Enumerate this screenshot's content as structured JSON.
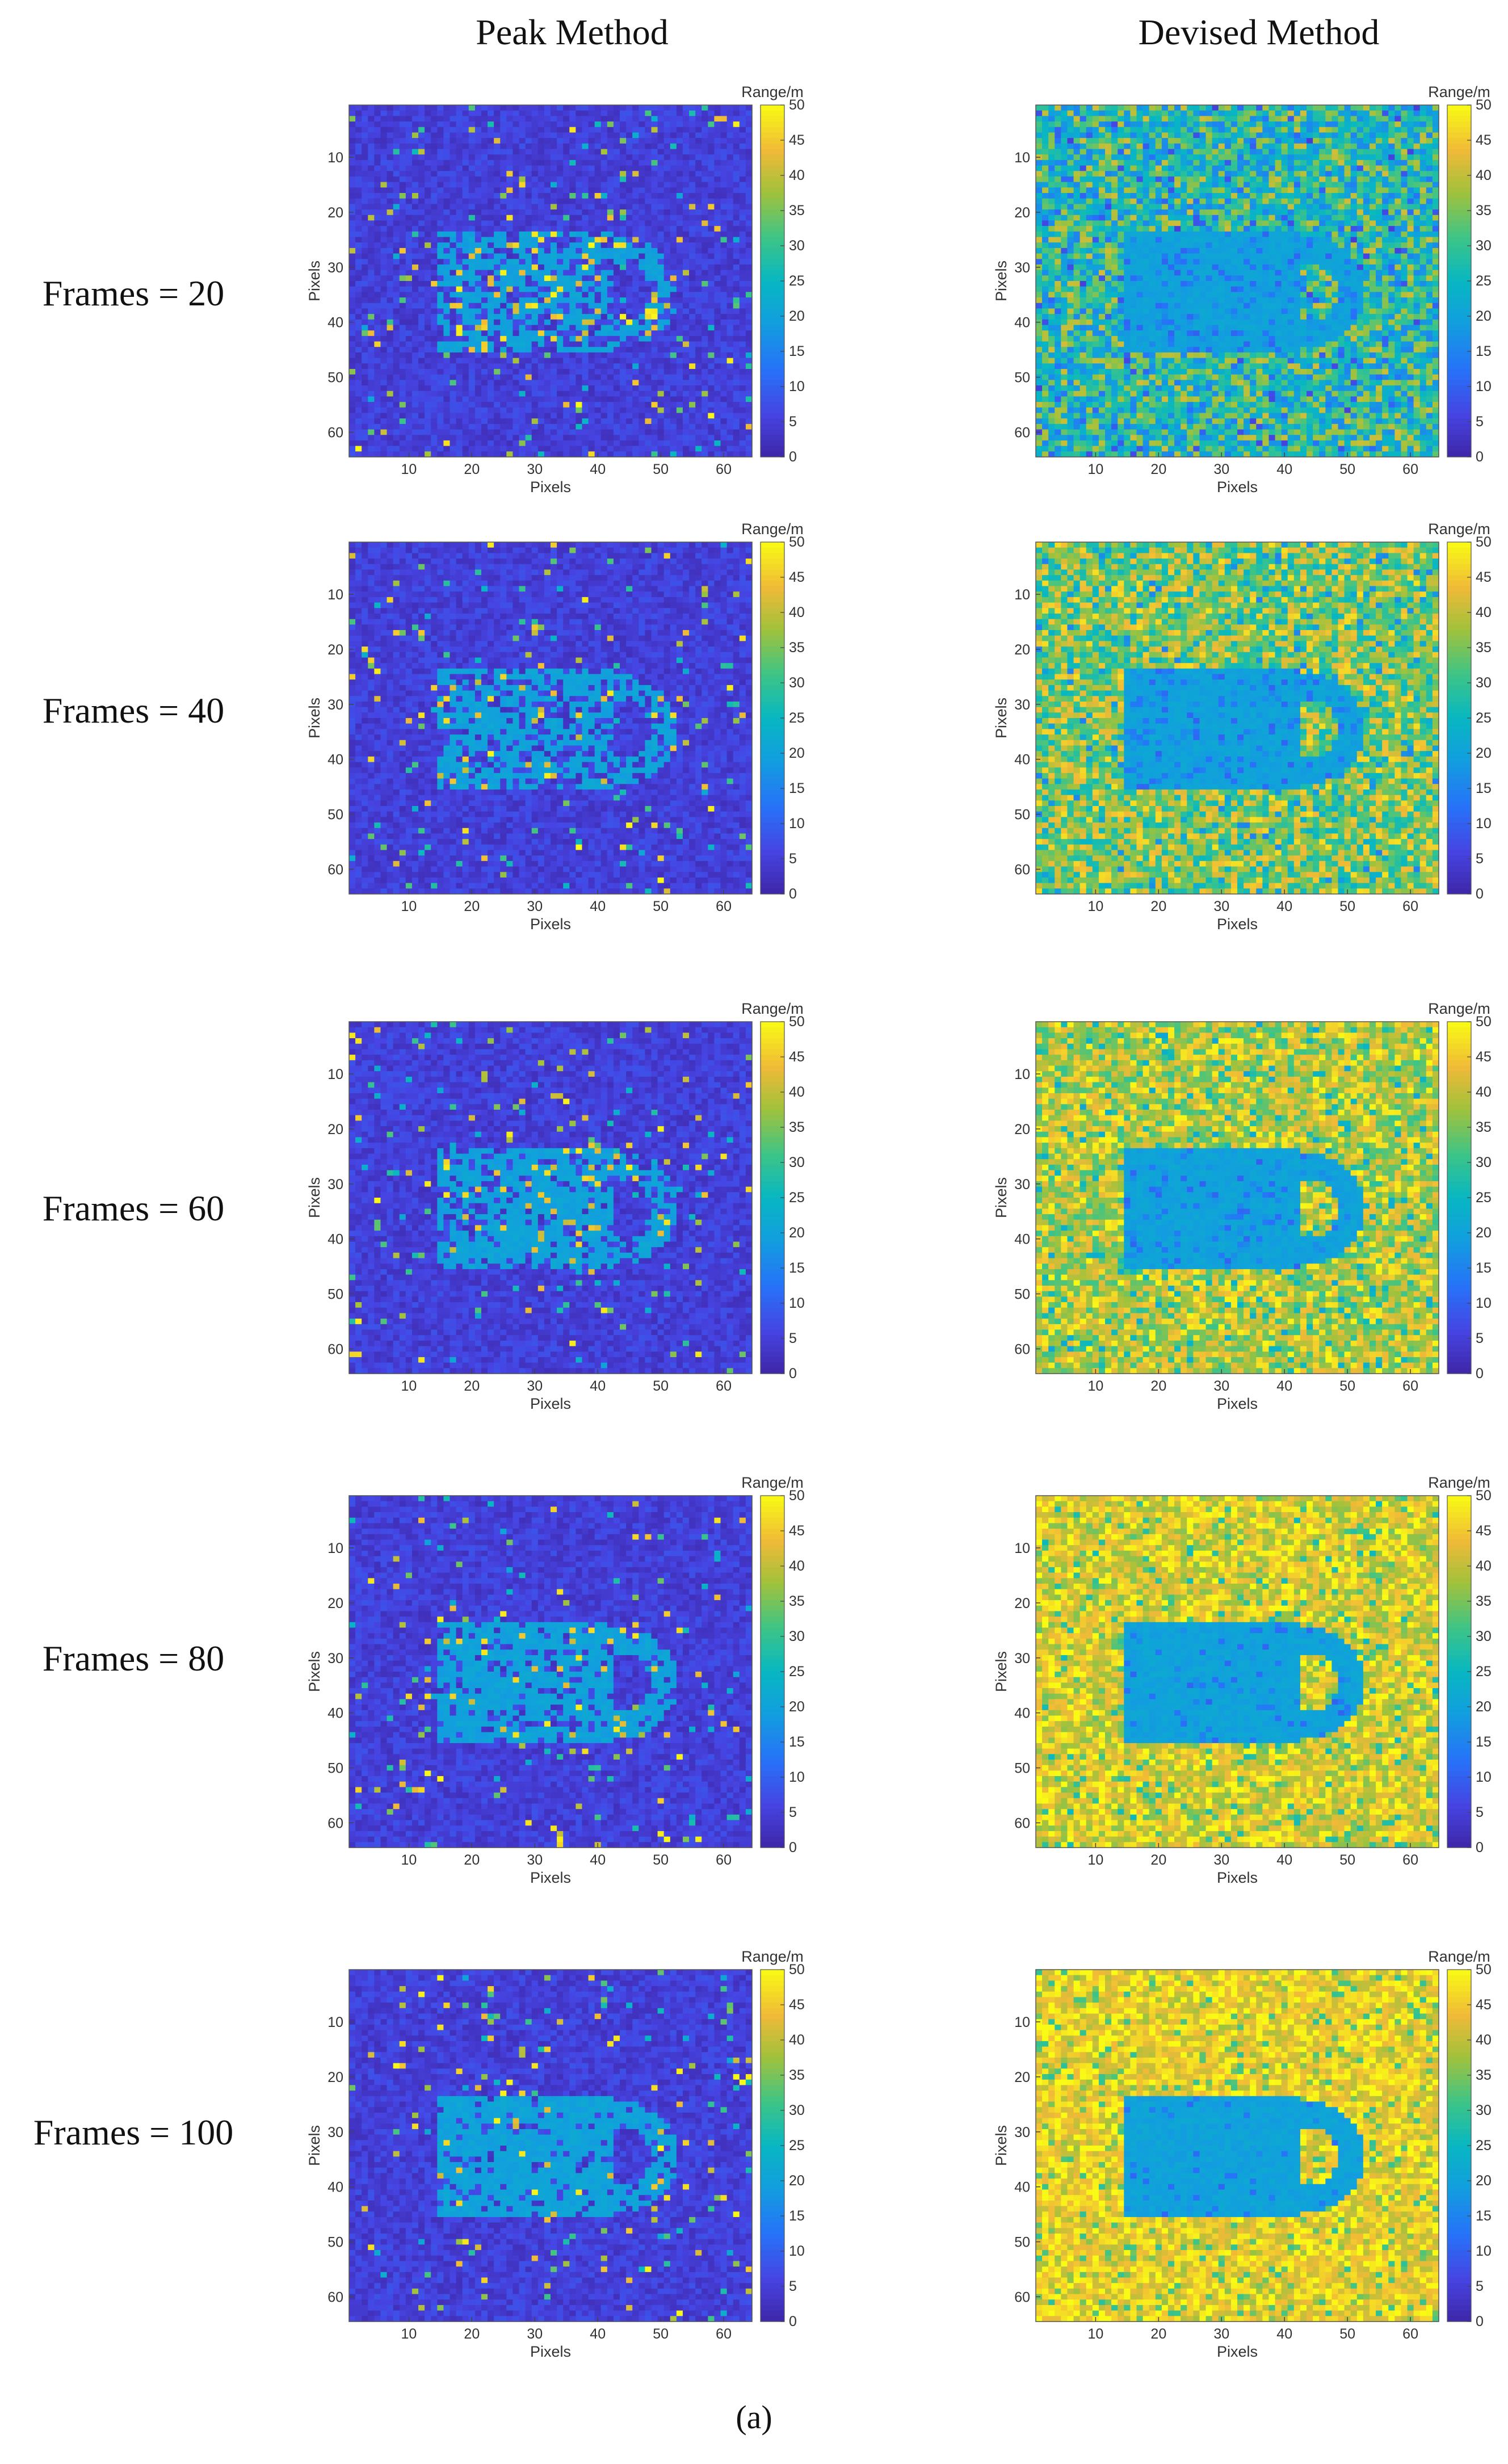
{
  "column_titles": [
    "Peak Method",
    "Devised Method"
  ],
  "row_labels": [
    "Frames = 20",
    "Frames = 40",
    "Frames = 60",
    "Frames = 80",
    "Frames = 100"
  ],
  "caption": "(a)",
  "colors": {
    "colormap": "parula",
    "background_low": "#3e3fb3",
    "target_range": "#1aa5d8",
    "noise_high": "#f5e12b"
  },
  "chart_data": [
    {
      "type": "heatmap",
      "method": "Peak Method",
      "frames": 20,
      "xlabel": "Pixels",
      "ylabel": "Pixels",
      "colorbar_label": "Range/m",
      "xlim": [
        1,
        64
      ],
      "ylim": [
        1,
        64
      ],
      "x_ticks": [
        10,
        20,
        30,
        40,
        50,
        60
      ],
      "y_ticks": [
        10,
        20,
        30,
        40,
        50,
        60
      ],
      "clim": [
        0,
        50
      ],
      "colorbar_ticks": [
        0,
        5,
        10,
        15,
        20,
        25,
        30,
        35,
        40,
        45,
        50
      ],
      "target_region": {
        "x": [
          15,
          52
        ],
        "y": [
          24,
          45
        ]
      },
      "target_range_m": 20,
      "background_range_m": 5
    },
    {
      "type": "heatmap",
      "method": "Devised Method",
      "frames": 20,
      "xlabel": "Pixels",
      "ylabel": "Pixels",
      "colorbar_label": "Range/m",
      "xlim": [
        1,
        64
      ],
      "ylim": [
        1,
        64
      ],
      "x_ticks": [
        10,
        20,
        30,
        40,
        50,
        60
      ],
      "y_ticks": [
        10,
        20,
        30,
        40,
        50,
        60
      ],
      "clim": [
        0,
        50
      ],
      "colorbar_ticks": [
        0,
        5,
        10,
        15,
        20,
        25,
        30,
        35,
        40,
        45,
        50
      ],
      "target_region": {
        "x": [
          15,
          52
        ],
        "y": [
          24,
          45
        ]
      },
      "target_range_m": 20,
      "background_range_m": 28
    },
    {
      "type": "heatmap",
      "method": "Peak Method",
      "frames": 40,
      "xlabel": "Pixels",
      "ylabel": "Pixels",
      "colorbar_label": "Range/m",
      "xlim": [
        1,
        64
      ],
      "ylim": [
        1,
        64
      ],
      "x_ticks": [
        10,
        20,
        30,
        40,
        50,
        60
      ],
      "y_ticks": [
        10,
        20,
        30,
        40,
        50,
        60
      ],
      "clim": [
        0,
        50
      ],
      "colorbar_ticks": [
        0,
        5,
        10,
        15,
        20,
        25,
        30,
        35,
        40,
        45,
        50
      ],
      "target_region": {
        "x": [
          15,
          52
        ],
        "y": [
          24,
          45
        ]
      },
      "target_range_m": 20,
      "background_range_m": 5
    },
    {
      "type": "heatmap",
      "method": "Devised Method",
      "frames": 40,
      "xlabel": "Pixels",
      "ylabel": "Pixels",
      "colorbar_label": "Range/m",
      "xlim": [
        1,
        64
      ],
      "ylim": [
        1,
        64
      ],
      "x_ticks": [
        10,
        20,
        30,
        40,
        50,
        60
      ],
      "y_ticks": [
        10,
        20,
        30,
        40,
        50,
        60
      ],
      "clim": [
        0,
        50
      ],
      "colorbar_ticks": [
        0,
        5,
        10,
        15,
        20,
        25,
        30,
        35,
        40,
        45,
        50
      ],
      "target_region": {
        "x": [
          15,
          52
        ],
        "y": [
          24,
          45
        ]
      },
      "target_range_m": 20,
      "background_range_m": 36
    },
    {
      "type": "heatmap",
      "method": "Peak Method",
      "frames": 60,
      "xlabel": "Pixels",
      "ylabel": "Pixels",
      "colorbar_label": "Range/m",
      "xlim": [
        1,
        64
      ],
      "ylim": [
        1,
        64
      ],
      "x_ticks": [
        10,
        20,
        30,
        40,
        50,
        60
      ],
      "y_ticks": [
        10,
        20,
        30,
        40,
        50,
        60
      ],
      "clim": [
        0,
        50
      ],
      "colorbar_ticks": [
        0,
        5,
        10,
        15,
        20,
        25,
        30,
        35,
        40,
        45,
        50
      ],
      "target_region": {
        "x": [
          15,
          52
        ],
        "y": [
          24,
          45
        ]
      },
      "target_range_m": 20,
      "background_range_m": 5
    },
    {
      "type": "heatmap",
      "method": "Devised Method",
      "frames": 60,
      "xlabel": "Pixels",
      "ylabel": "Pixels",
      "colorbar_label": "Range/m",
      "xlim": [
        1,
        64
      ],
      "ylim": [
        1,
        64
      ],
      "x_ticks": [
        10,
        20,
        30,
        40,
        50,
        60
      ],
      "y_ticks": [
        10,
        20,
        30,
        40,
        50,
        60
      ],
      "clim": [
        0,
        50
      ],
      "colorbar_ticks": [
        0,
        5,
        10,
        15,
        20,
        25,
        30,
        35,
        40,
        45,
        50
      ],
      "target_region": {
        "x": [
          15,
          52
        ],
        "y": [
          24,
          45
        ]
      },
      "target_range_m": 20,
      "background_range_m": 40
    },
    {
      "type": "heatmap",
      "method": "Peak Method",
      "frames": 80,
      "xlabel": "Pixels",
      "ylabel": "Pixels",
      "colorbar_label": "Range/m",
      "xlim": [
        1,
        64
      ],
      "ylim": [
        1,
        64
      ],
      "x_ticks": [
        10,
        20,
        30,
        40,
        50,
        60
      ],
      "y_ticks": [
        10,
        20,
        30,
        40,
        50,
        60
      ],
      "clim": [
        0,
        50
      ],
      "colorbar_ticks": [
        0,
        5,
        10,
        15,
        20,
        25,
        30,
        35,
        40,
        45,
        50
      ],
      "target_region": {
        "x": [
          15,
          52
        ],
        "y": [
          24,
          45
        ]
      },
      "target_range_m": 20,
      "background_range_m": 5
    },
    {
      "type": "heatmap",
      "method": "Devised Method",
      "frames": 80,
      "xlabel": "Pixels",
      "ylabel": "Pixels",
      "colorbar_label": "Range/m",
      "xlim": [
        1,
        64
      ],
      "ylim": [
        1,
        64
      ],
      "x_ticks": [
        10,
        20,
        30,
        40,
        50,
        60
      ],
      "y_ticks": [
        10,
        20,
        30,
        40,
        50,
        60
      ],
      "clim": [
        0,
        50
      ],
      "colorbar_ticks": [
        0,
        5,
        10,
        15,
        20,
        25,
        30,
        35,
        40,
        45,
        50
      ],
      "target_region": {
        "x": [
          15,
          52
        ],
        "y": [
          24,
          45
        ]
      },
      "target_range_m": 20,
      "background_range_m": 43
    },
    {
      "type": "heatmap",
      "method": "Peak Method",
      "frames": 100,
      "xlabel": "Pixels",
      "ylabel": "Pixels",
      "colorbar_label": "Range/m",
      "xlim": [
        1,
        64
      ],
      "ylim": [
        1,
        64
      ],
      "x_ticks": [
        10,
        20,
        30,
        40,
        50,
        60
      ],
      "y_ticks": [
        10,
        20,
        30,
        40,
        50,
        60
      ],
      "clim": [
        0,
        50
      ],
      "colorbar_ticks": [
        0,
        5,
        10,
        15,
        20,
        25,
        30,
        35,
        40,
        45,
        50
      ],
      "target_region": {
        "x": [
          15,
          52
        ],
        "y": [
          24,
          45
        ]
      },
      "target_range_m": 20,
      "background_range_m": 5
    },
    {
      "type": "heatmap",
      "method": "Devised Method",
      "frames": 100,
      "xlabel": "Pixels",
      "ylabel": "Pixels",
      "colorbar_label": "Range/m",
      "xlim": [
        1,
        64
      ],
      "ylim": [
        1,
        64
      ],
      "x_ticks": [
        10,
        20,
        30,
        40,
        50,
        60
      ],
      "y_ticks": [
        10,
        20,
        30,
        40,
        50,
        60
      ],
      "clim": [
        0,
        50
      ],
      "colorbar_ticks": [
        0,
        5,
        10,
        15,
        20,
        25,
        30,
        35,
        40,
        45,
        50
      ],
      "target_region": {
        "x": [
          15,
          52
        ],
        "y": [
          24,
          45
        ]
      },
      "target_range_m": 20,
      "background_range_m": 45
    }
  ]
}
